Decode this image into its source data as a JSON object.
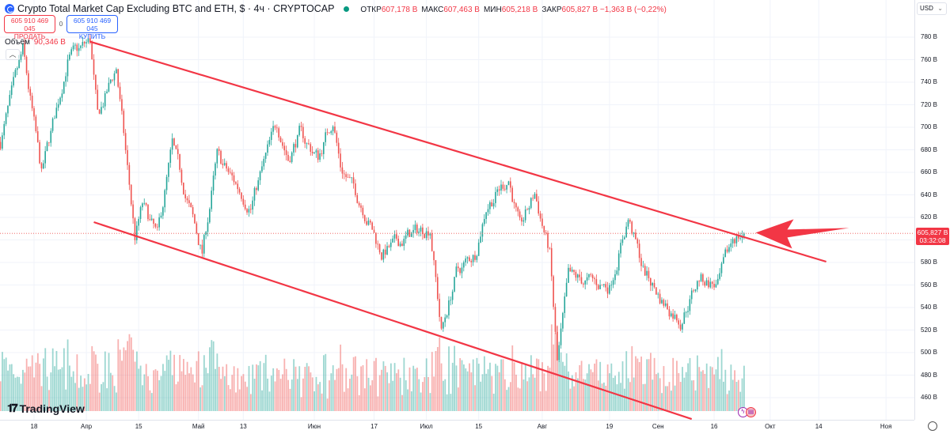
{
  "header": {
    "title": "Crypto Total Market Cap Excluding BTC and ETH, $ · 4ч · CRYPTOCAP",
    "ohlc": [
      {
        "k": "ОТКР",
        "v": "607,178 B"
      },
      {
        "k": "МАКС",
        "v": "607,463 B"
      },
      {
        "k": "МИН",
        "v": "605,218 B"
      },
      {
        "k": "ЗАКР",
        "v": "605,827 B −1,363 B (−0,22%)"
      }
    ],
    "market_status_color": "#089981"
  },
  "trade": {
    "sell_price": "605 910 469 045",
    "sell_label": "ПРОДАТЬ",
    "spread": "0",
    "buy_price": "605 910 469 045",
    "buy_label": "КУПИТЬ"
  },
  "volume": {
    "label": "Объём",
    "value": "90,346 B"
  },
  "currency": "USD",
  "last_price": {
    "value": "605,827 B",
    "countdown": "03:32:08"
  },
  "logo": "TradingView",
  "colors": {
    "up": "#26a69a",
    "down": "#ef5350",
    "trendline": "#f23645",
    "arrow": "#f23645"
  },
  "chart_data": {
    "type": "candlestick",
    "interval": "4ч",
    "y_ticks": [
      "780 B",
      "760 B",
      "740 B",
      "720 B",
      "700 B",
      "680 B",
      "660 B",
      "640 B",
      "620 B",
      "600 B",
      "580 B",
      "560 B",
      "540 B",
      "520 B",
      "500 B",
      "480 B",
      "460 B"
    ],
    "ylim": [
      460,
      780
    ],
    "x_ticks": [
      {
        "d": "2024-03-18",
        "t": "18"
      },
      {
        "d": "2024-04-01",
        "t": "Апр"
      },
      {
        "d": "2024-04-15",
        "t": "15"
      },
      {
        "d": "2024-05-01",
        "t": "Май"
      },
      {
        "d": "2024-05-13",
        "t": "13"
      },
      {
        "d": "2024-06-01",
        "t": "Июн"
      },
      {
        "d": "2024-06-17",
        "t": "17"
      },
      {
        "d": "2024-07-01",
        "t": "Июл"
      },
      {
        "d": "2024-07-15",
        "t": "15"
      },
      {
        "d": "2024-08-01",
        "t": "Авг"
      },
      {
        "d": "2024-08-19",
        "t": "19"
      },
      {
        "d": "2024-09-01",
        "t": "Сен"
      },
      {
        "d": "2024-09-16",
        "t": "16"
      },
      {
        "d": "2024-10-01",
        "t": "Окт"
      },
      {
        "d": "2024-10-14",
        "t": "14"
      },
      {
        "d": "2024-11-01",
        "t": "Ноя"
      }
    ],
    "price_path_billions": [
      [
        "2024-03-09",
        687
      ],
      [
        "2024-03-15",
        767
      ],
      [
        "2024-03-20",
        658
      ],
      [
        "2024-03-27",
        760
      ],
      [
        "2024-04-02",
        776
      ],
      [
        "2024-04-04",
        708
      ],
      [
        "2024-04-09",
        753
      ],
      [
        "2024-04-14",
        602
      ],
      [
        "2024-04-16",
        630
      ],
      [
        "2024-04-20",
        602
      ],
      [
        "2024-04-24",
        683
      ],
      [
        "2024-05-02",
        588
      ],
      [
        "2024-05-06",
        673
      ],
      [
        "2024-05-15",
        630
      ],
      [
        "2024-05-22",
        704
      ],
      [
        "2024-05-25",
        673
      ],
      [
        "2024-05-28",
        694
      ],
      [
        "2024-06-02",
        673
      ],
      [
        "2024-06-06",
        708
      ],
      [
        "2024-06-08",
        666
      ],
      [
        "2024-06-14",
        630
      ],
      [
        "2024-06-19",
        588
      ],
      [
        "2024-06-27",
        605
      ],
      [
        "2024-07-02",
        612
      ],
      [
        "2024-07-05",
        518
      ],
      [
        "2024-07-09",
        570
      ],
      [
        "2024-07-14",
        588
      ],
      [
        "2024-07-17",
        630
      ],
      [
        "2024-07-23",
        655
      ],
      [
        "2024-07-26",
        609
      ],
      [
        "2024-07-30",
        641
      ],
      [
        "2024-08-03",
        588
      ],
      [
        "2024-08-05",
        490
      ],
      [
        "2024-08-08",
        566
      ],
      [
        "2024-08-19",
        559
      ],
      [
        "2024-08-24",
        619
      ],
      [
        "2024-08-28",
        574
      ],
      [
        "2024-09-02",
        546
      ],
      [
        "2024-09-07",
        529
      ],
      [
        "2024-09-12",
        566
      ],
      [
        "2024-09-17",
        559
      ],
      [
        "2024-09-21",
        602
      ],
      [
        "2024-09-24",
        605.827
      ]
    ],
    "last_price": 605.827,
    "trendlines": [
      {
        "from": [
          "2024-04-02",
          776
        ],
        "to": [
          "2024-10-16",
          580.7
        ]
      },
      {
        "from": [
          "2024-04-03",
          615.8
        ],
        "to": [
          "2024-09-10",
          441
        ]
      }
    ],
    "annotation": {
      "type": "arrow",
      "direction": "left",
      "points_to": [
        "2024-09-25",
        605
      ]
    },
    "grid": true
  }
}
